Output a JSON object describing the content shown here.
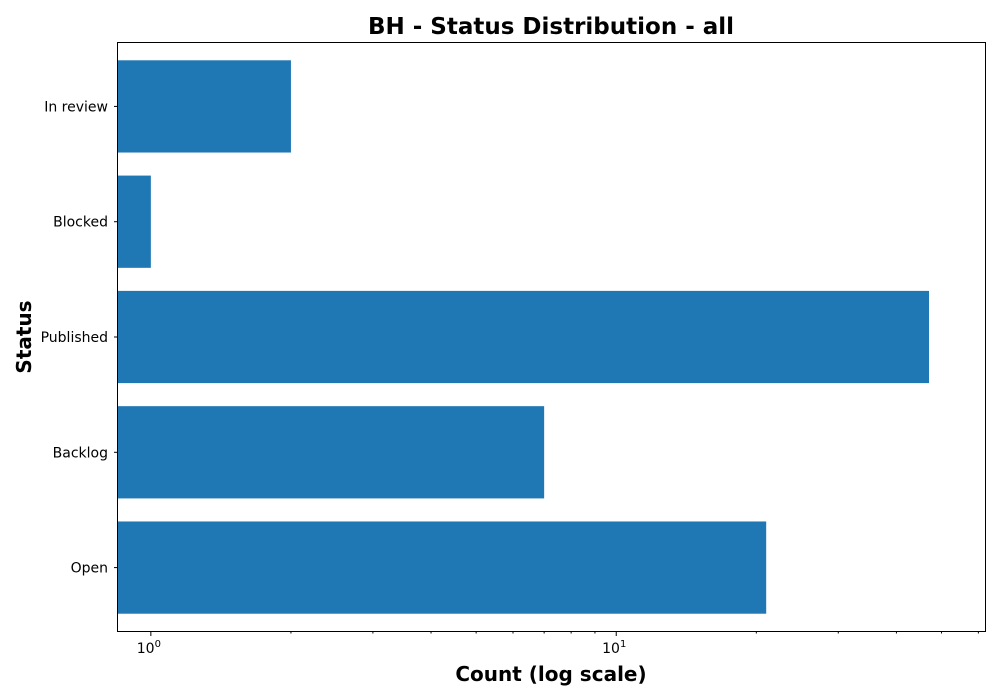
{
  "chart_data": {
    "type": "bar",
    "orientation": "horizontal",
    "title": "BH - Status Distribution - all",
    "xlabel": "Count (log scale)",
    "ylabel": "Status",
    "x_scale": "log",
    "xlim": [
      0.85,
      62
    ],
    "categories": [
      "Open",
      "Backlog",
      "Published",
      "Blocked",
      "In review"
    ],
    "values": [
      21,
      7,
      47,
      1,
      2
    ],
    "x_ticks": [
      {
        "value": 1,
        "base": "10",
        "exponent": "0"
      },
      {
        "value": 10,
        "base": "10",
        "exponent": "1"
      }
    ],
    "bar_color": "#1f77b4",
    "grid": false,
    "legend": false
  }
}
